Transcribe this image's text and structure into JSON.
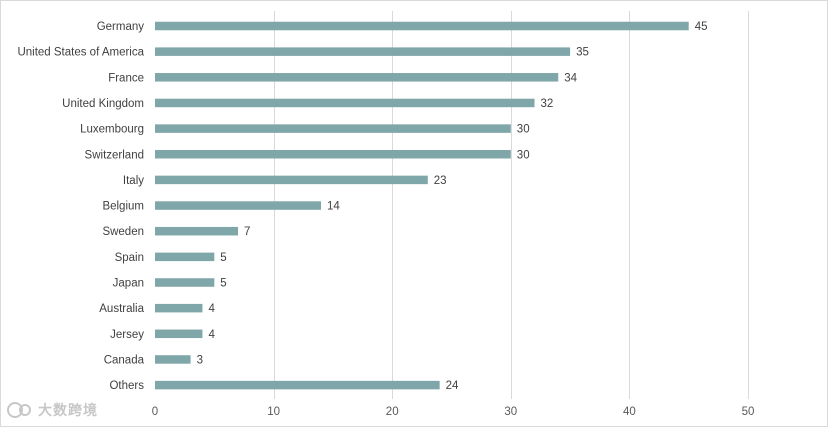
{
  "chart_data": {
    "type": "bar",
    "orientation": "horizontal",
    "categories": [
      "Germany",
      "United States of America",
      "France",
      "United Kingdom",
      "Luxembourg",
      "Switzerland",
      "Italy",
      "Belgium",
      "Sweden",
      "Spain",
      "Japan",
      "Australia",
      "Jersey",
      "Canada",
      "Others"
    ],
    "values": [
      45,
      35,
      34,
      32,
      30,
      30,
      23,
      14,
      7,
      5,
      5,
      4,
      4,
      3,
      24
    ],
    "xlim": [
      0,
      50
    ],
    "xticks": [
      0,
      10,
      20,
      30,
      40,
      50
    ],
    "grid": true,
    "bar_color": "#7fa6a8",
    "data_labels": true,
    "title": "",
    "xlabel": "",
    "ylabel": ""
  },
  "watermark": {
    "text": "大数跨境"
  }
}
